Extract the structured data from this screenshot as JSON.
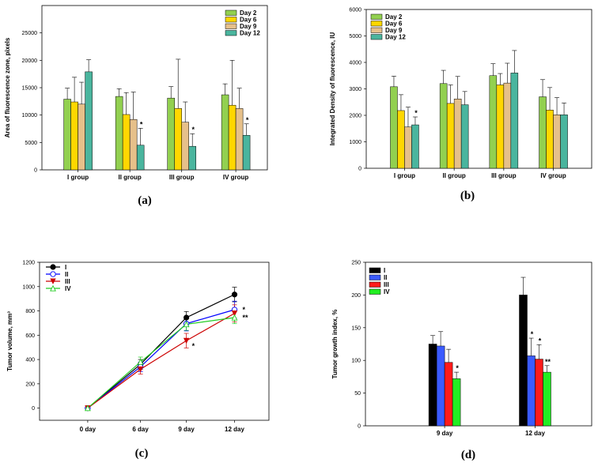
{
  "charts": [
    {
      "id": "a",
      "type": "bar",
      "panel_label": "(a)",
      "ylabel": "Area of fluorescence zone, pixels",
      "xlabel": "",
      "ylim": [
        0,
        30000
      ],
      "yticks": [
        0,
        5000,
        10000,
        15000,
        20000,
        25000
      ],
      "categories": [
        "I group",
        "II group",
        "III group",
        "IV group"
      ],
      "legend": "top-right",
      "series": [
        {
          "name": "Day 2",
          "color": "#92d050",
          "values": [
            12900,
            13400,
            13100,
            13700
          ],
          "errors": [
            2000,
            1400,
            2100,
            2000
          ]
        },
        {
          "name": "Day 6",
          "color": "#ffd700",
          "values": [
            12400,
            10100,
            11200,
            11800
          ],
          "errors": [
            4500,
            4000,
            9000,
            8200
          ]
        },
        {
          "name": "Day 9",
          "color": "#e6c08a",
          "values": [
            12000,
            9200,
            8700,
            11200
          ],
          "errors": [
            4000,
            5000,
            3700,
            3700
          ]
        },
        {
          "name": "Day 12",
          "color": "#4ab59e",
          "values": [
            17900,
            4500,
            4300,
            6300
          ],
          "errors": [
            2200,
            3100,
            2300,
            2100
          ]
        }
      ],
      "annotations": [
        {
          "category": 1,
          "series": 3,
          "text": "*"
        },
        {
          "category": 2,
          "series": 3,
          "text": "*"
        },
        {
          "category": 3,
          "series": 3,
          "text": "*"
        }
      ]
    },
    {
      "id": "b",
      "type": "bar",
      "panel_label": "(b)",
      "ylabel": "Integrated Density of fluorescence, IU",
      "xlabel": "",
      "ylim": [
        0,
        6000
      ],
      "yticks": [
        0,
        1000,
        2000,
        3000,
        4000,
        5000,
        6000
      ],
      "categories": [
        "I group",
        "II group",
        "III group",
        "IV group"
      ],
      "legend": "top-left",
      "series": [
        {
          "name": "Day 2",
          "color": "#92d050",
          "values": [
            3080,
            3200,
            3500,
            2700
          ],
          "errors": [
            400,
            500,
            450,
            650
          ]
        },
        {
          "name": "Day 6",
          "color": "#ffd700",
          "values": [
            2180,
            2450,
            3150,
            2200
          ],
          "errors": [
            600,
            700,
            430,
            850
          ]
        },
        {
          "name": "Day 9",
          "color": "#e6c08a",
          "values": [
            1560,
            2620,
            3220,
            2020
          ],
          "errors": [
            750,
            850,
            750,
            650
          ]
        },
        {
          "name": "Day 12",
          "color": "#4ab59e",
          "values": [
            1640,
            2400,
            3600,
            2020
          ],
          "errors": [
            300,
            500,
            850,
            450
          ]
        }
      ],
      "annotations": [
        {
          "category": 0,
          "series": 3,
          "text": "*"
        }
      ]
    },
    {
      "id": "c",
      "type": "line",
      "panel_label": "(c)",
      "ylabel": "Tumor volume, mm³",
      "xlabel": "",
      "ylim": [
        -100,
        1200
      ],
      "yticks": [
        0,
        200,
        400,
        600,
        800,
        1000,
        1200
      ],
      "categories": [
        "0 day",
        "6 day",
        "9 day",
        "12 day"
      ],
      "legend": "top-left",
      "series": [
        {
          "name": "I",
          "color": "#000000",
          "marker": "circle-filled",
          "values": [
            0,
            360,
            745,
            935
          ],
          "errors": [
            0,
            40,
            50,
            60
          ]
        },
        {
          "name": "II",
          "color": "#0000ff",
          "marker": "circle-open",
          "values": [
            0,
            340,
            695,
            810
          ],
          "errors": [
            0,
            40,
            60,
            70
          ]
        },
        {
          "name": "III",
          "color": "#cc0000",
          "marker": "triangle-down-filled",
          "values": [
            0,
            320,
            555,
            780
          ],
          "errors": [
            0,
            40,
            60,
            70
          ]
        },
        {
          "name": "IV",
          "color": "#22cc22",
          "marker": "triangle-up-open",
          "values": [
            0,
            380,
            690,
            745
          ],
          "errors": [
            0,
            40,
            50,
            50
          ]
        }
      ],
      "annotations": [
        {
          "category": 2,
          "series": 2,
          "text": "*"
        },
        {
          "category": 3,
          "series": 1,
          "text": "*"
        },
        {
          "category": 3,
          "series": 3,
          "text": "**"
        }
      ]
    },
    {
      "id": "d",
      "type": "bar",
      "panel_label": "(d)",
      "ylabel": "Tumor growth index, %",
      "xlabel": "",
      "ylim": [
        0,
        250
      ],
      "yticks": [
        0,
        50,
        100,
        150,
        200,
        250
      ],
      "categories": [
        "9 day",
        "12 day"
      ],
      "legend": "top-left",
      "series": [
        {
          "name": "I",
          "color": "#000000",
          "values": [
            125,
            200
          ],
          "errors": [
            13,
            27
          ]
        },
        {
          "name": "II",
          "color": "#3b5bff",
          "values": [
            122,
            107
          ],
          "errors": [
            22,
            27
          ]
        },
        {
          "name": "III",
          "color": "#ff1a1a",
          "values": [
            97,
            102
          ],
          "errors": [
            20,
            22
          ]
        },
        {
          "name": "IV",
          "color": "#22ee22",
          "values": [
            72,
            82
          ],
          "errors": [
            10,
            10
          ]
        }
      ],
      "annotations": [
        {
          "category": 0,
          "series": 3,
          "text": "*"
        },
        {
          "category": 1,
          "series": 1,
          "text": "*"
        },
        {
          "category": 1,
          "series": 2,
          "text": "*"
        },
        {
          "category": 1,
          "series": 3,
          "text": "**"
        }
      ]
    }
  ]
}
